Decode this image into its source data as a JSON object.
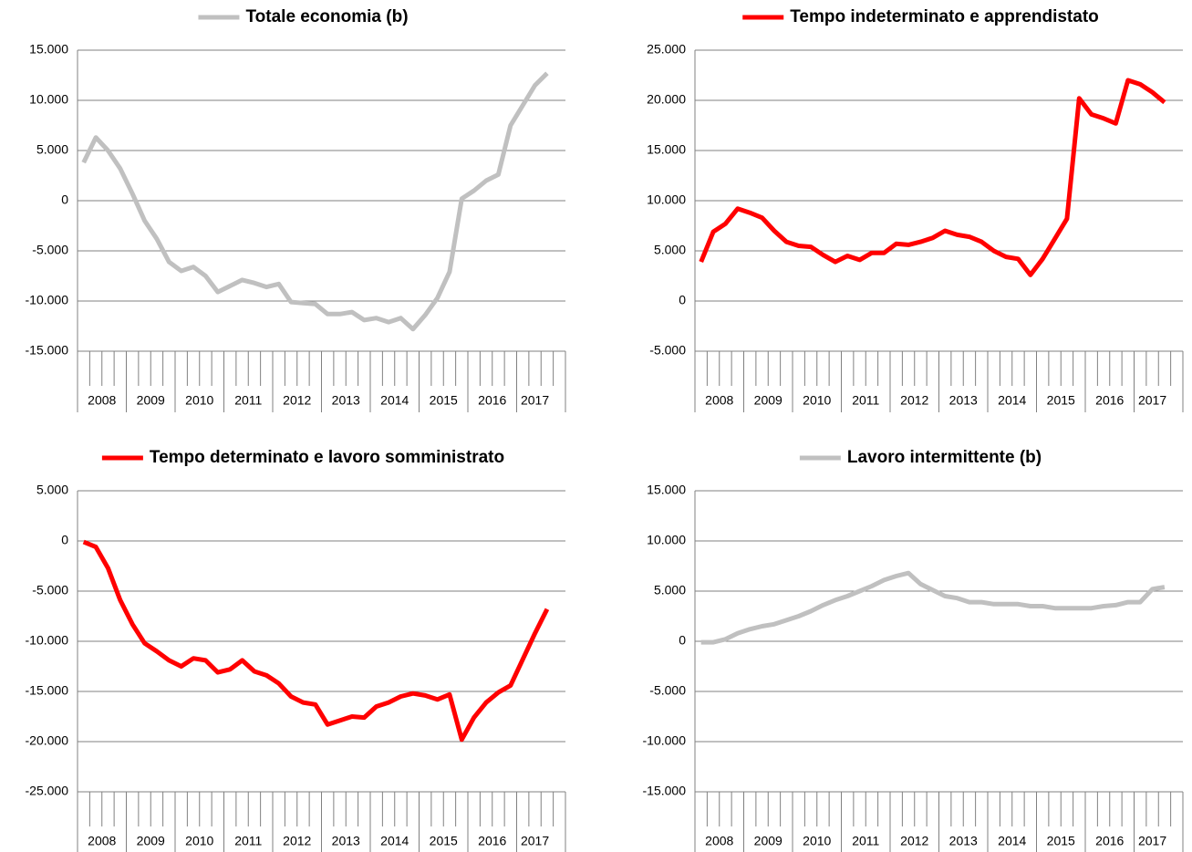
{
  "chart_data": [
    {
      "type": "line",
      "series": [
        {
          "name": "Totale economia (b)",
          "color": "#c0c0c0",
          "values": [
            3800,
            6300,
            5000,
            3200,
            700,
            -2000,
            -3800,
            -6100,
            -7000,
            -6600,
            -7500,
            -9100,
            -8500,
            -7900,
            -8200,
            -8600,
            -8300,
            -10100,
            -10200,
            -10300,
            -11300,
            -11300,
            -11100,
            -11900,
            -11700,
            -12100,
            -11700,
            -12800,
            -11400,
            -9700,
            -7100,
            200,
            1000,
            2000,
            2600,
            7500,
            9500,
            11500,
            12700
          ]
        }
      ],
      "categories": [
        "2008",
        null,
        null,
        null,
        "2009",
        null,
        null,
        null,
        "2010",
        null,
        null,
        null,
        "2011",
        null,
        null,
        null,
        "2012",
        null,
        null,
        null,
        "2013",
        null,
        null,
        null,
        "2014",
        null,
        null,
        null,
        "2015",
        null,
        null,
        null,
        "2016",
        null,
        null,
        null,
        "2017",
        null,
        null
      ],
      "ylim": [
        -15000,
        15000
      ],
      "yticks": [
        {
          "value": -15000,
          "label": "-15.000"
        },
        {
          "value": -10000,
          "label": "-10.000"
        },
        {
          "value": -5000,
          "label": "-5.000"
        },
        0,
        {
          "value": 5000,
          "label": "5.000"
        },
        {
          "value": 10000,
          "label": "10.000"
        },
        {
          "value": 15000,
          "label": "15.000"
        }
      ],
      "grid": true
    },
    {
      "type": "line",
      "series": [
        {
          "name": "Tempo indeterminato e apprendistato",
          "color": "#ff0000",
          "values": [
            3900,
            6900,
            7700,
            9200,
            8800,
            8300,
            7000,
            5900,
            5500,
            5400,
            4600,
            3900,
            4500,
            4100,
            4800,
            4800,
            5700,
            5600,
            5900,
            6300,
            7000,
            6600,
            6400,
            5900,
            5000,
            4400,
            4200,
            2600,
            4200,
            6200,
            8200,
            20200,
            18600,
            18200,
            17700,
            22000,
            21600,
            20800,
            19800
          ]
        }
      ],
      "categories": [
        "2008",
        null,
        null,
        null,
        "2009",
        null,
        null,
        null,
        "2010",
        null,
        null,
        null,
        "2011",
        null,
        null,
        null,
        "2012",
        null,
        null,
        null,
        "2013",
        null,
        null,
        null,
        "2014",
        null,
        null,
        null,
        "2015",
        null,
        null,
        null,
        "2016",
        null,
        null,
        null,
        "2017",
        null,
        null
      ],
      "ylim": [
        -5000,
        25000
      ],
      "yticks": [
        {
          "value": -5000,
          "label": "-5.000"
        },
        0,
        {
          "value": 5000,
          "label": "5.000"
        },
        {
          "value": 10000,
          "label": "10.000"
        },
        {
          "value": 15000,
          "label": "15.000"
        },
        {
          "value": 20000,
          "label": "20.000"
        },
        {
          "value": 25000,
          "label": "25.000"
        }
      ],
      "grid": true
    },
    {
      "type": "line",
      "series": [
        {
          "name": "Tempo determinato e lavoro somministrato",
          "color": "#ff0000",
          "values": [
            -100,
            -600,
            -2700,
            -5900,
            -8300,
            -10200,
            -11000,
            -11900,
            -12500,
            -11700,
            -11900,
            -13100,
            -12800,
            -11900,
            -13000,
            -13400,
            -14200,
            -15500,
            -16100,
            -16300,
            -18300,
            -17900,
            -17500,
            -17600,
            -16500,
            -16100,
            -15500,
            -15200,
            -15400,
            -15800,
            -15300,
            -19800,
            -17600,
            -16100,
            -15100,
            -14400,
            -11800,
            -9200,
            -6800
          ]
        }
      ],
      "categories": [
        "2008",
        null,
        null,
        null,
        "2009",
        null,
        null,
        null,
        "2010",
        null,
        null,
        null,
        "2011",
        null,
        null,
        null,
        "2012",
        null,
        null,
        null,
        "2013",
        null,
        null,
        null,
        "2014",
        null,
        null,
        null,
        "2015",
        null,
        null,
        null,
        "2016",
        null,
        null,
        null,
        "2017",
        null,
        null
      ],
      "ylim": [
        -25000,
        5000
      ],
      "yticks": [
        {
          "value": -25000,
          "label": "-25.000"
        },
        {
          "value": -20000,
          "label": "-20.000"
        },
        {
          "value": -15000,
          "label": "-15.000"
        },
        {
          "value": -10000,
          "label": "-10.000"
        },
        {
          "value": -5000,
          "label": "-5.000"
        },
        0,
        {
          "value": 5000,
          "label": "5.000"
        }
      ],
      "grid": true
    },
    {
      "type": "line",
      "series": [
        {
          "name": "Lavoro intermittente (b)",
          "color": "#c0c0c0",
          "values": [
            -100,
            -100,
            200,
            800,
            1200,
            1500,
            1700,
            2100,
            2500,
            3000,
            3600,
            4100,
            4500,
            5000,
            5500,
            6100,
            6500,
            6800,
            5700,
            5100,
            4500,
            4300,
            3900,
            3900,
            3700,
            3700,
            3700,
            3500,
            3500,
            3300,
            3300,
            3300,
            3300,
            3500,
            3600,
            3900,
            3900,
            5200,
            5400
          ]
        }
      ],
      "categories": [
        "2008",
        null,
        null,
        null,
        "2009",
        null,
        null,
        null,
        "2010",
        null,
        null,
        null,
        "2011",
        null,
        null,
        null,
        "2012",
        null,
        null,
        null,
        "2013",
        null,
        null,
        null,
        "2014",
        null,
        null,
        null,
        "2015",
        null,
        null,
        null,
        "2016",
        null,
        null,
        null,
        "2017",
        null,
        null
      ],
      "ylim": [
        -15000,
        15000
      ],
      "yticks": [
        {
          "value": -15000,
          "label": "-15.000"
        },
        {
          "value": -10000,
          "label": "-10.000"
        },
        {
          "value": -5000,
          "label": "-5.000"
        },
        0,
        {
          "value": 5000,
          "label": "5.000"
        },
        {
          "value": 10000,
          "label": "10.000"
        },
        {
          "value": 15000,
          "label": "15.000"
        }
      ],
      "grid": true
    }
  ]
}
